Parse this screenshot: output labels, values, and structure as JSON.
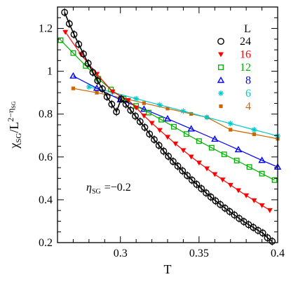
{
  "chart_data": {
    "type": "line",
    "xlabel": "T",
    "ylabel_main": "χ",
    "ylabel_sub": "SG",
    "ylabel_slash": "/L",
    "ylabel_exp": "2−η",
    "ylabel_exp_sub": "SG",
    "xlim": [
      0.26,
      0.4
    ],
    "ylim": [
      0.2,
      1.3
    ],
    "xticks": [
      0.3,
      0.35,
      0.4
    ],
    "xtick_labels": [
      "0.3",
      "0.35",
      "0.4"
    ],
    "yticks": [
      0.2,
      0.4,
      0.6,
      0.8,
      1.0,
      1.2
    ],
    "ytick_labels": [
      "0.2",
      "0.4",
      "0.6",
      "0.8",
      "1",
      "1.2"
    ],
    "legend_title": "L",
    "legend_position": "top-right",
    "annotation": {
      "symbol": "η",
      "sub": "SG",
      "text": "=−0.2"
    },
    "series": [
      {
        "name": "24",
        "color": "#000000",
        "marker": "circle",
        "x": [
          0.2645,
          0.2675,
          0.2705,
          0.2735,
          0.2765,
          0.2795,
          0.2825,
          0.2855,
          0.2885,
          0.2915,
          0.2945,
          0.2975,
          0.3005,
          0.3035,
          0.3065,
          0.3095,
          0.3125,
          0.3155,
          0.3185,
          0.3215,
          0.3245,
          0.3275,
          0.3305,
          0.3335,
          0.3365,
          0.3395,
          0.3425,
          0.3455,
          0.3485,
          0.3515,
          0.3545,
          0.3575,
          0.3605,
          0.3635,
          0.3665,
          0.3695,
          0.3725,
          0.3755,
          0.3785,
          0.3815,
          0.3845,
          0.3875,
          0.3905,
          0.3935,
          0.3965
        ],
        "y": [
          1.275,
          1.222,
          1.172,
          1.126,
          1.081,
          1.037,
          0.995,
          0.956,
          0.918,
          0.881,
          0.846,
          0.811,
          0.871,
          0.846,
          0.818,
          0.791,
          0.765,
          0.738,
          0.707,
          0.681,
          0.654,
          0.627,
          0.603,
          0.579,
          0.557,
          0.535,
          0.513,
          0.492,
          0.472,
          0.452,
          0.432,
          0.413,
          0.395,
          0.378,
          0.361,
          0.345,
          0.329,
          0.313,
          0.298,
          0.284,
          0.271,
          0.257,
          0.245,
          0.223,
          0.206
        ]
      },
      {
        "name": "16",
        "color": "#ff0000",
        "marker": "triangle-down",
        "x": [
          0.265,
          0.275,
          0.285,
          0.295,
          0.305,
          0.31,
          0.315,
          0.32,
          0.325,
          0.33,
          0.335,
          0.34,
          0.345,
          0.35,
          0.355,
          0.36,
          0.365,
          0.37,
          0.375,
          0.38,
          0.385,
          0.39,
          0.395
        ],
        "y": [
          1.183,
          1.078,
          0.987,
          0.905,
          0.865,
          0.83,
          0.792,
          0.758,
          0.725,
          0.693,
          0.662,
          0.631,
          0.601,
          0.573,
          0.546,
          0.519,
          0.494,
          0.469,
          0.444,
          0.42,
          0.397,
          0.374,
          0.351
        ]
      },
      {
        "name": "12",
        "color": "#00b000",
        "marker": "square",
        "x": [
          0.262,
          0.27,
          0.278,
          0.286,
          0.294,
          0.302,
          0.31,
          0.318,
          0.326,
          0.334,
          0.342,
          0.35,
          0.358,
          0.366,
          0.374,
          0.382,
          0.39,
          0.398
        ],
        "y": [
          1.145,
          1.085,
          1.025,
          0.965,
          0.915,
          0.872,
          0.838,
          0.807,
          0.774,
          0.741,
          0.707,
          0.674,
          0.643,
          0.612,
          0.583,
          0.553,
          0.522,
          0.492
        ]
      },
      {
        "name": "8",
        "color": "#0000ff",
        "marker": "triangle-up",
        "x": [
          0.27,
          0.285,
          0.3,
          0.315,
          0.33,
          0.345,
          0.36,
          0.375,
          0.39,
          0.4
        ],
        "y": [
          0.978,
          0.921,
          0.867,
          0.823,
          0.778,
          0.731,
          0.683,
          0.634,
          0.584,
          0.553
        ]
      },
      {
        "name": "6",
        "color": "#00c8c8",
        "marker": "asterisk",
        "x": [
          0.28,
          0.295,
          0.31,
          0.325,
          0.34,
          0.355,
          0.37,
          0.385,
          0.4
        ],
        "y": [
          0.927,
          0.902,
          0.872,
          0.843,
          0.814,
          0.785,
          0.756,
          0.727,
          0.698
        ]
      },
      {
        "name": "4",
        "color": "#cc6600",
        "marker": "filled-square",
        "x": [
          0.27,
          0.285,
          0.3,
          0.315,
          0.33,
          0.345,
          0.355,
          0.37,
          0.385,
          0.4
        ],
        "y": [
          0.92,
          0.9,
          0.877,
          0.851,
          0.826,
          0.801,
          0.785,
          0.727,
          0.706,
          0.685
        ]
      }
    ]
  }
}
